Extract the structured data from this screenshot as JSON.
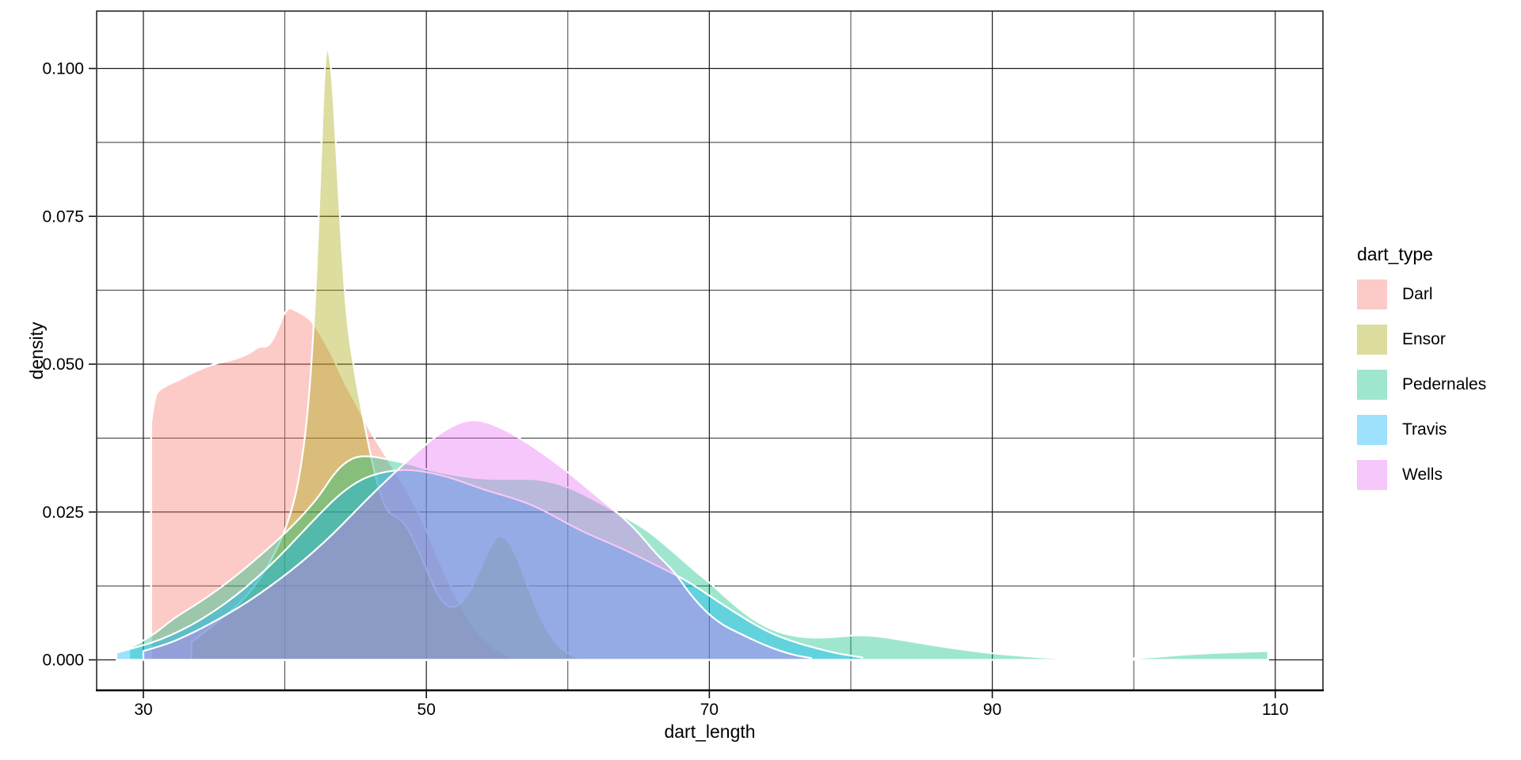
{
  "chart_data": {
    "type": "area",
    "subtype": "kernel-density",
    "title": "",
    "xlabel": "dart_length",
    "ylabel": "density",
    "xlim": [
      26.7,
      113.4
    ],
    "ylim": [
      -0.005,
      0.11
    ],
    "grid": "major and minor, thin black lines on white panel, black panel border",
    "background": "#FFFFFF",
    "stroke_color": "#FFFFFF",
    "fill_alpha": 0.38,
    "x_ticks": {
      "major": [
        30,
        50,
        70,
        90,
        110
      ],
      "labels": [
        "30",
        "50",
        "70",
        "90",
        "110"
      ],
      "minor": [
        40,
        60,
        80,
        100
      ]
    },
    "y_ticks": {
      "major": [
        0,
        0.025,
        0.05,
        0.075,
        0.1
      ],
      "labels": [
        "0.000",
        "0.025",
        "0.050",
        "0.075",
        "0.100"
      ],
      "minor": [
        0.0125,
        0.0375,
        0.0625,
        0.0875
      ]
    },
    "legend": {
      "title": "dart_type",
      "position": "right",
      "entries": [
        {
          "label": "Darl",
          "color": "#F8766D",
          "key_color": "#FCCBC8"
        },
        {
          "label": "Ensor",
          "color": "#A3A500",
          "key_color": "#DCDD9E"
        },
        {
          "label": "Pedernales",
          "color": "#00BF7D",
          "key_color": "#9EE7CE"
        },
        {
          "label": "Travis",
          "color": "#00B0F6",
          "key_color": "#9EE1FC"
        },
        {
          "label": "Wells",
          "color": "#E76BF3",
          "key_color": "#F6C7FA"
        }
      ]
    },
    "series": [
      {
        "name": "Darl",
        "color": "#F8766D",
        "points": [
          [
            30.55,
            0.04
          ],
          [
            30.8,
            0.0447
          ],
          [
            31.2,
            0.0458
          ],
          [
            32.0,
            0.0468
          ],
          [
            32.6,
            0.0474
          ],
          [
            33.5,
            0.0486
          ],
          [
            34.9,
            0.05
          ],
          [
            36.3,
            0.0507
          ],
          [
            37.5,
            0.0518
          ],
          [
            38.2,
            0.0531
          ],
          [
            38.8,
            0.0528
          ],
          [
            39.4,
            0.0552
          ],
          [
            40.15,
            0.0598
          ],
          [
            40.8,
            0.059
          ],
          [
            41.4,
            0.0583
          ],
          [
            42.0,
            0.057
          ],
          [
            42.7,
            0.0543
          ],
          [
            43.4,
            0.0512
          ],
          [
            44.1,
            0.0474
          ],
          [
            45.1,
            0.043
          ],
          [
            46.0,
            0.0388
          ],
          [
            47.0,
            0.035
          ],
          [
            47.8,
            0.0318
          ],
          [
            48.6,
            0.0288
          ],
          [
            49.6,
            0.0242
          ],
          [
            50.6,
            0.0185
          ],
          [
            51.6,
            0.013
          ],
          [
            52.6,
            0.0082
          ],
          [
            53.6,
            0.0046
          ],
          [
            54.6,
            0.0022
          ],
          [
            55.6,
            0.0008
          ],
          [
            56.3,
            0.0003
          ]
        ]
      },
      {
        "name": "Ensor",
        "color": "#A3A500",
        "points": [
          [
            33.4,
            0.003
          ],
          [
            34.5,
            0.005
          ],
          [
            35.8,
            0.0075
          ],
          [
            37.0,
            0.01
          ],
          [
            38.2,
            0.0135
          ],
          [
            39.3,
            0.018
          ],
          [
            40.2,
            0.023
          ],
          [
            41.0,
            0.03
          ],
          [
            41.7,
            0.043
          ],
          [
            42.2,
            0.063
          ],
          [
            42.55,
            0.085
          ],
          [
            42.8,
            0.1
          ],
          [
            43.0,
            0.1043
          ],
          [
            43.3,
            0.1
          ],
          [
            43.6,
            0.088
          ],
          [
            44.0,
            0.07
          ],
          [
            44.4,
            0.057
          ],
          [
            44.9,
            0.049
          ],
          [
            45.4,
            0.0425
          ],
          [
            45.9,
            0.0365
          ],
          [
            46.4,
            0.031
          ],
          [
            46.9,
            0.0268
          ],
          [
            47.4,
            0.0247
          ],
          [
            47.9,
            0.0242
          ],
          [
            48.5,
            0.023
          ],
          [
            49.1,
            0.0203
          ],
          [
            49.8,
            0.0165
          ],
          [
            50.5,
            0.0125
          ],
          [
            51.1,
            0.0098
          ],
          [
            51.75,
            0.0087
          ],
          [
            52.5,
            0.0095
          ],
          [
            53.3,
            0.0125
          ],
          [
            54.1,
            0.017
          ],
          [
            54.8,
            0.0204
          ],
          [
            55.3,
            0.0211
          ],
          [
            55.9,
            0.0198
          ],
          [
            56.6,
            0.0163
          ],
          [
            57.3,
            0.0115
          ],
          [
            58.1,
            0.0068
          ],
          [
            58.9,
            0.0035
          ],
          [
            59.7,
            0.0015
          ],
          [
            60.5,
            0.0005
          ],
          [
            60.9,
            0.0002
          ]
        ]
      },
      {
        "name": "Pedernales",
        "color": "#00BF7D",
        "points": [
          [
            29.0,
            0.002
          ],
          [
            30.5,
            0.0038
          ],
          [
            32.1,
            0.007
          ],
          [
            34.1,
            0.0099
          ],
          [
            36.2,
            0.0135
          ],
          [
            38.2,
            0.0175
          ],
          [
            40.3,
            0.022
          ],
          [
            42.3,
            0.0272
          ],
          [
            43.6,
            0.032
          ],
          [
            44.8,
            0.0343
          ],
          [
            46.0,
            0.0345
          ],
          [
            47.5,
            0.0338
          ],
          [
            49.0,
            0.033
          ],
          [
            50.0,
            0.0322
          ],
          [
            52.0,
            0.0312
          ],
          [
            54.0,
            0.0306
          ],
          [
            56.0,
            0.0306
          ],
          [
            58.0,
            0.0306
          ],
          [
            60.0,
            0.0293
          ],
          [
            62.0,
            0.0269
          ],
          [
            63.7,
            0.0246
          ],
          [
            65.6,
            0.022
          ],
          [
            67.5,
            0.0182
          ],
          [
            68.9,
            0.0152
          ],
          [
            70.3,
            0.0125
          ],
          [
            71.7,
            0.0094
          ],
          [
            73.1,
            0.0068
          ],
          [
            74.5,
            0.005
          ],
          [
            76.0,
            0.004
          ],
          [
            77.5,
            0.0037
          ],
          [
            79.0,
            0.0039
          ],
          [
            80.5,
            0.0042
          ],
          [
            82.0,
            0.004
          ],
          [
            84.3,
            0.0031
          ],
          [
            86.0,
            0.0024
          ],
          [
            88.0,
            0.0017
          ],
          [
            90.0,
            0.0011
          ],
          [
            91.5,
            0.0008
          ],
          [
            93.0,
            0.0005
          ],
          [
            94.5,
            0.0003
          ],
          [
            96.0,
            0.0002
          ],
          [
            98.0,
            0.0001
          ],
          [
            99.5,
            0.0002
          ],
          [
            101.0,
            0.0004
          ],
          [
            103.0,
            0.0008
          ],
          [
            105.0,
            0.0011
          ],
          [
            107.0,
            0.0013
          ],
          [
            109.5,
            0.0015
          ]
        ]
      },
      {
        "name": "Travis",
        "color": "#00B0F6",
        "points": [
          [
            28.1,
            0.0012
          ],
          [
            29.0,
            0.0018
          ],
          [
            30.5,
            0.0028
          ],
          [
            32.0,
            0.0042
          ],
          [
            33.5,
            0.006
          ],
          [
            35.0,
            0.0082
          ],
          [
            36.5,
            0.0108
          ],
          [
            38.0,
            0.0138
          ],
          [
            39.5,
            0.0172
          ],
          [
            41.0,
            0.021
          ],
          [
            42.5,
            0.0248
          ],
          [
            44.0,
            0.0283
          ],
          [
            45.5,
            0.0307
          ],
          [
            47.0,
            0.0318
          ],
          [
            48.5,
            0.0322
          ],
          [
            50.0,
            0.0318
          ],
          [
            51.9,
            0.0307
          ],
          [
            54.0,
            0.0288
          ],
          [
            56.2,
            0.0273
          ],
          [
            58.0,
            0.0257
          ],
          [
            60.8,
            0.0219
          ],
          [
            63.7,
            0.019
          ],
          [
            66.5,
            0.0157
          ],
          [
            68.5,
            0.0133
          ],
          [
            71.2,
            0.0089
          ],
          [
            74.0,
            0.0048
          ],
          [
            76.0,
            0.003
          ],
          [
            77.5,
            0.002
          ],
          [
            79.0,
            0.0011
          ],
          [
            80.3,
            0.0006
          ],
          [
            80.8,
            0.0004
          ]
        ]
      },
      {
        "name": "Wells",
        "color": "#E76BF3",
        "points": [
          [
            30.0,
            0.0015
          ],
          [
            31.5,
            0.0025
          ],
          [
            33.0,
            0.004
          ],
          [
            34.5,
            0.0058
          ],
          [
            36.0,
            0.0078
          ],
          [
            37.5,
            0.01
          ],
          [
            39.0,
            0.0125
          ],
          [
            40.5,
            0.0152
          ],
          [
            42.0,
            0.0182
          ],
          [
            43.5,
            0.0215
          ],
          [
            45.0,
            0.0252
          ],
          [
            46.5,
            0.0288
          ],
          [
            48.0,
            0.0322
          ],
          [
            49.5,
            0.0355
          ],
          [
            51.0,
            0.0384
          ],
          [
            52.3,
            0.0401
          ],
          [
            53.3,
            0.0406
          ],
          [
            54.3,
            0.0402
          ],
          [
            55.5,
            0.039
          ],
          [
            56.8,
            0.0372
          ],
          [
            58.0,
            0.0353
          ],
          [
            59.5,
            0.0327
          ],
          [
            61.0,
            0.0298
          ],
          [
            62.5,
            0.0268
          ],
          [
            63.8,
            0.0243
          ],
          [
            65.0,
            0.0215
          ],
          [
            66.2,
            0.018
          ],
          [
            67.5,
            0.015
          ],
          [
            68.6,
            0.0112
          ],
          [
            69.8,
            0.008
          ],
          [
            71.0,
            0.0058
          ],
          [
            72.2,
            0.0044
          ],
          [
            73.6,
            0.0028
          ],
          [
            75.0,
            0.0015
          ],
          [
            76.2,
            0.0007
          ],
          [
            77.2,
            0.0003
          ]
        ]
      }
    ]
  }
}
